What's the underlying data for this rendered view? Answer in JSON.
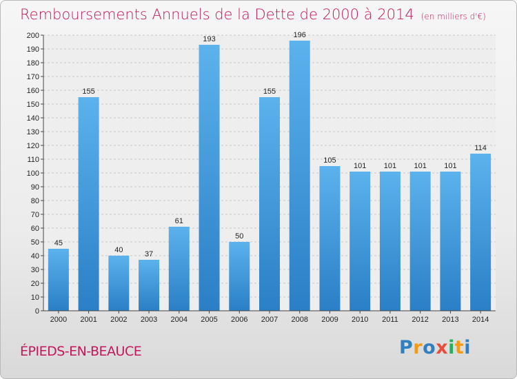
{
  "title": "Remboursements Annuels de la Dette de 2000 à 2014",
  "subtitle": "(en milliers d'€)",
  "commune": "ÉPIEDS-EN-BEAUCE",
  "logo": {
    "letters": [
      "P",
      "r",
      "o",
      "x",
      "i",
      "t",
      "i"
    ],
    "colors": [
      "#2f7fc1",
      "#f39c12",
      "#2f7fc1",
      "#e74c3c",
      "#27ae60",
      "#f39c12",
      "#2f7fc1"
    ]
  },
  "colors": {
    "bar": "#3f9fe0",
    "bar_dark": "#2a7fc6",
    "title": "#c2185b"
  },
  "chart_data": {
    "type": "bar",
    "title": "Remboursements Annuels de la Dette de 2000 à 2014",
    "subtitle": "(en milliers d'€)",
    "xlabel": "",
    "ylabel": "",
    "categories": [
      "2000",
      "2001",
      "2002",
      "2003",
      "2004",
      "2005",
      "2006",
      "2007",
      "2008",
      "2009",
      "2010",
      "2011",
      "2012",
      "2013",
      "2014"
    ],
    "values": [
      45,
      155,
      40,
      37,
      61,
      193,
      50,
      155,
      196,
      105,
      101,
      101,
      101,
      101,
      114
    ],
    "ylim": [
      0,
      200
    ],
    "yticks": [
      "0",
      "10",
      "20",
      "30",
      "40",
      "50",
      "60",
      "70",
      "80",
      "90",
      "100",
      "110",
      "120",
      "130",
      "140",
      "150",
      "160",
      "170",
      "180",
      "190",
      "200"
    ],
    "grid": true,
    "legend": "none"
  }
}
